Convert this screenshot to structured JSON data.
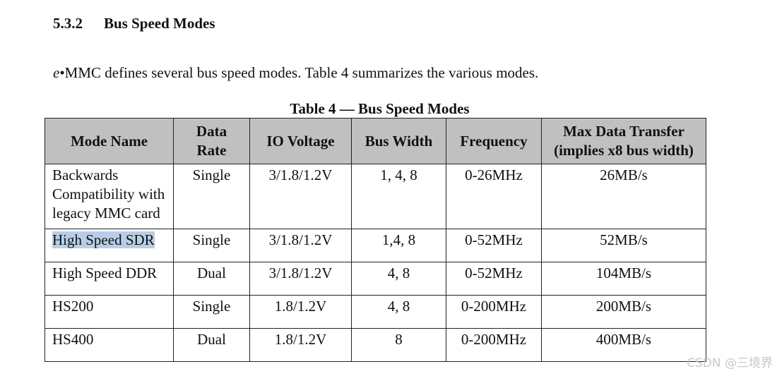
{
  "section": {
    "number": "5.3.2",
    "title": "Bus Speed Modes"
  },
  "intro": {
    "em_prefix": "e",
    "text": "•MMC defines several bus speed modes. Table 4 summarizes the various modes."
  },
  "table": {
    "caption": "Table 4 — Bus Speed Modes",
    "headers": {
      "mode_name": "Mode Name",
      "data_rate_1": "Data",
      "data_rate_2": "Rate",
      "io_voltage": "IO Voltage",
      "bus_width": "Bus Width",
      "frequency": "Frequency",
      "max_transfer_1": "Max Data Transfer",
      "max_transfer_2": "(implies x8 bus width)"
    },
    "rows": [
      {
        "name_lines": [
          "Backwards",
          "Compatibility with",
          "legacy MMC card"
        ],
        "data_rate": "Single",
        "io_voltage": "3/1.8/1.2V",
        "bus_width": "1, 4, 8",
        "frequency": "0-26MHz",
        "max_transfer": "26MB/s"
      },
      {
        "name": "High Speed SDR",
        "data_rate": "Single",
        "io_voltage": "3/1.8/1.2V",
        "bus_width": "1,4, 8",
        "frequency": "0-52MHz",
        "max_transfer": "52MB/s"
      },
      {
        "name": "High Speed DDR",
        "data_rate": "Dual",
        "io_voltage": "3/1.8/1.2V",
        "bus_width": "4, 8",
        "frequency": "0-52MHz",
        "max_transfer": "104MB/s"
      },
      {
        "name": "HS200",
        "data_rate": "Single",
        "io_voltage": "1.8/1.2V",
        "bus_width": "4, 8",
        "frequency": "0-200MHz",
        "max_transfer": "200MB/s"
      },
      {
        "name": "HS400",
        "data_rate": "Dual",
        "io_voltage": "1.8/1.2V",
        "bus_width": "8",
        "frequency": "0-200MHz",
        "max_transfer": "400MB/s"
      }
    ]
  },
  "watermark": "CSDN @三境界",
  "colors": {
    "header_bg": "#c0c0c0",
    "selection_highlight": "#b7cfe6"
  }
}
